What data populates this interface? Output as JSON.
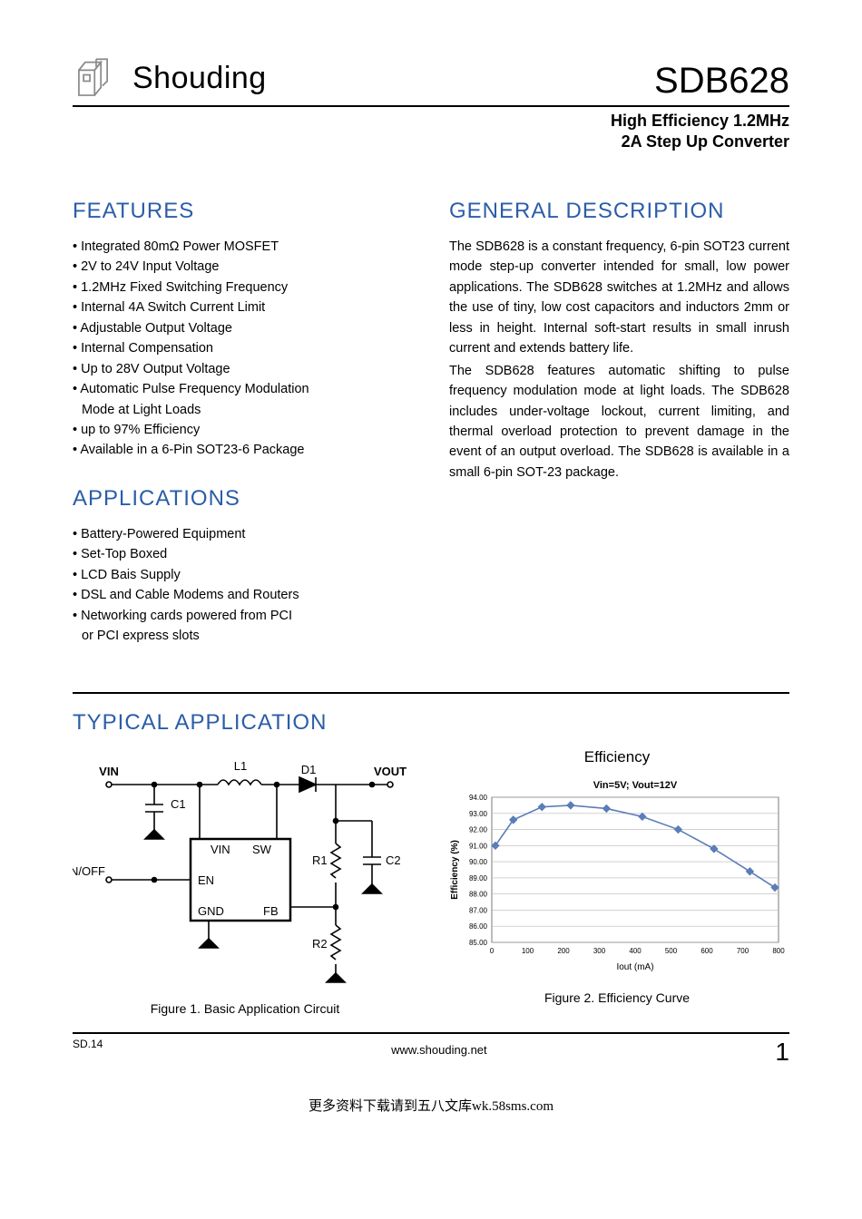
{
  "header": {
    "brand": "Shouding",
    "part": "SDB628",
    "subtitle_line1": "High Efficiency 1.2MHz",
    "subtitle_line2": "2A Step Up Converter"
  },
  "sections": {
    "features_title": "FEATURES",
    "applications_title": "APPLICATIONS",
    "description_title": "GENERAL DESCRIPTION",
    "typical_title": "TYPICAL APPLICATION"
  },
  "features": [
    "Integrated 80mΩ Power MOSFET",
    "2V to 24V Input Voltage",
    "1.2MHz Fixed Switching Frequency",
    "Internal 4A Switch Current Limit",
    "Adjustable Output Voltage",
    "Internal Compensation",
    "Up to 28V Output Voltage",
    "Automatic Pulse Frequency Modulation",
    "Mode at Light Loads",
    "up to 97% Efficiency",
    "Available in a 6-Pin SOT23-6 Package"
  ],
  "features_indent_indices": [
    8
  ],
  "applications": [
    "Battery-Powered Equipment",
    "Set-Top Boxed",
    "LCD Bais Supply",
    "DSL and Cable Modems and Routers",
    "Networking cards powered from PCI",
    "or PCI express slots"
  ],
  "applications_indent_indices": [
    5
  ],
  "description": {
    "p1": "The SDB628 is a constant frequency, 6-pin SOT23 current mode step-up converter intended for small, low power applications. The SDB628 switches at 1.2MHz and allows the use of tiny, low cost capacitors and inductors 2mm or less in height. Internal soft-start results in small inrush current and extends battery life.",
    "p2": "The SDB628 features automatic shifting to pulse frequency modulation mode at light loads. The SDB628 includes under-voltage lockout, current limiting, and thermal overload protection to prevent damage in the event of an output overload. The SDB628 is available in a small 6-pin SOT-23 package."
  },
  "circuit": {
    "labels": {
      "vin": "VIN",
      "vout": "VOUT",
      "onoff": "ON/OFF",
      "l1": "L1",
      "d1": "D1",
      "c1": "C1",
      "c2": "C2",
      "r1": "R1",
      "r2": "R2",
      "pin_vin": "VIN",
      "pin_sw": "SW",
      "pin_en": "EN",
      "pin_gnd": "GND",
      "pin_fb": "FB"
    },
    "caption": "Figure 1. Basic Application Circuit"
  },
  "chart": {
    "title": "Efficiency",
    "legend": "Vin=5V; Vout=12V",
    "ylabel": "Efficiency (%)",
    "xlabel": "Iout (mA)",
    "yticks": [
      "85.00",
      "86.00",
      "87.00",
      "88.00",
      "89.00",
      "90.00",
      "91.00",
      "92.00",
      "93.00",
      "94.00"
    ],
    "ylim": [
      85,
      94
    ],
    "xticks": [
      "0",
      "100",
      "200",
      "300",
      "400",
      "500",
      "600",
      "700",
      "800"
    ],
    "xlim": [
      0,
      800
    ],
    "line_color": "#5b7db8",
    "marker_color": "#5b7db8",
    "grid_color": "#b8b8b8",
    "border_color": "#7a7a7a",
    "background": "#ffffff",
    "data": {
      "x": [
        10,
        60,
        140,
        220,
        320,
        420,
        520,
        620,
        720,
        790
      ],
      "y": [
        91.0,
        92.6,
        93.4,
        93.5,
        93.3,
        92.8,
        92.0,
        90.8,
        89.4,
        88.4
      ]
    },
    "caption": "Figure 2. Efficiency Curve"
  },
  "footer": {
    "rev": "SD.14",
    "url": "www.shouding.net",
    "page": "1"
  },
  "bottom_note": "更多资料下载请到五八文库wk.58sms.com",
  "colors": {
    "heading": "#2b5da8",
    "text": "#000000"
  }
}
